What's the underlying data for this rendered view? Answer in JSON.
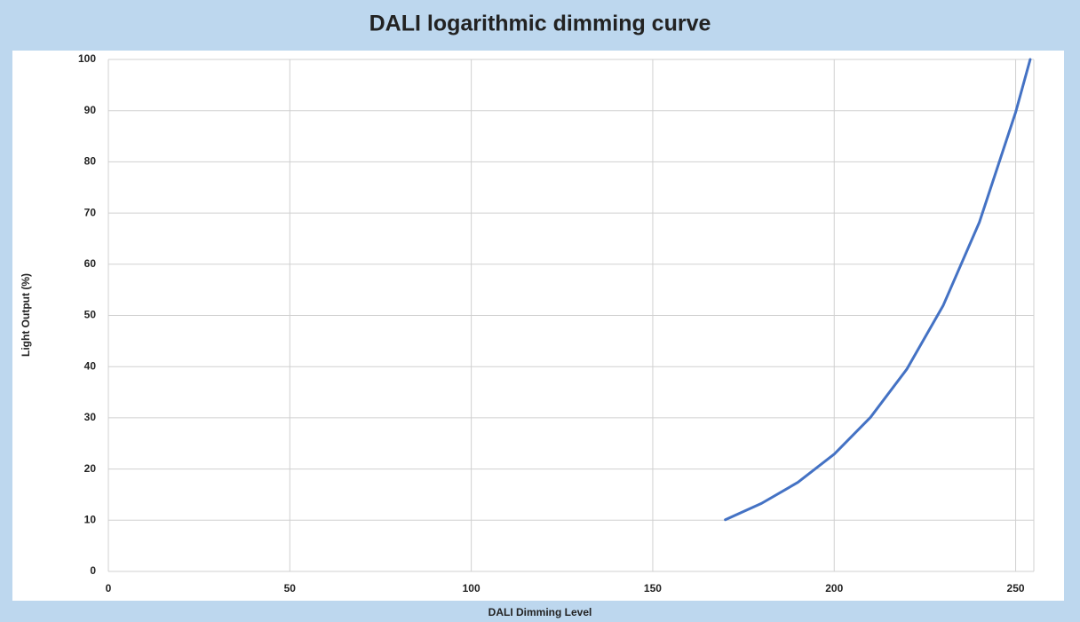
{
  "chart_data": {
    "type": "line",
    "title": "DALI logarithmic dimming curve",
    "x_label": "DALI Dimming Level",
    "y_label": "Light Output (%)",
    "x": [
      170,
      180,
      190,
      200,
      210,
      220,
      230,
      240,
      250,
      254
    ],
    "series": [
      {
        "name": "Light Output",
        "color": "#4472c4",
        "values": [
          10.1,
          13.3,
          17.4,
          22.9,
          30.1,
          39.5,
          51.9,
          68.2,
          89.7,
          100
        ]
      }
    ],
    "xlim": [
      0,
      255
    ],
    "xticks": [
      0,
      50,
      100,
      150,
      200,
      250
    ],
    "ylim": [
      0,
      100
    ],
    "yticks": [
      0,
      10,
      20,
      30,
      40,
      50,
      60,
      70,
      80,
      90,
      100
    ],
    "grid": true
  }
}
